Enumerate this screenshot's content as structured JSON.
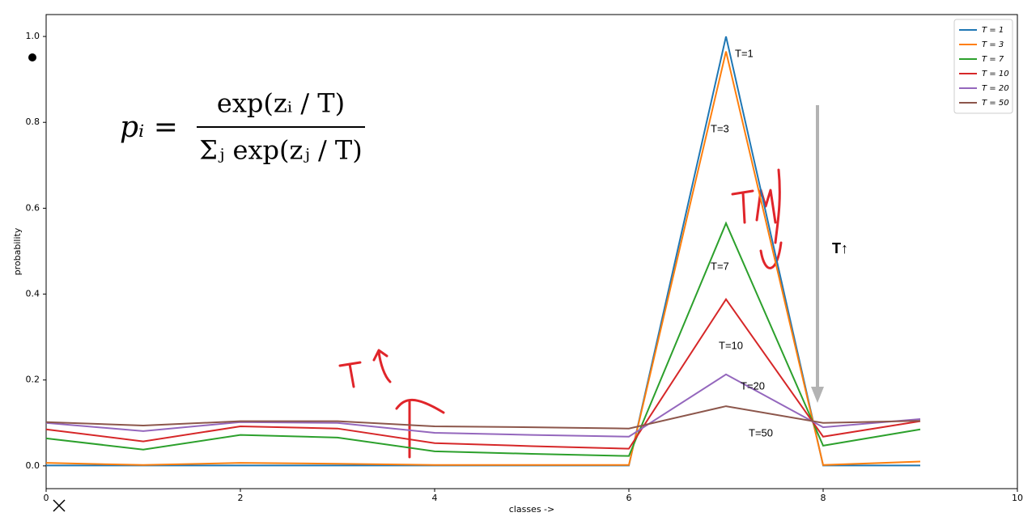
{
  "chart_data": {
    "type": "line",
    "x_label": "classes ->",
    "y_label": "probability",
    "xlim": [
      0,
      10
    ],
    "ylim": [
      -0.053,
      1.051
    ],
    "xticks": [
      0,
      2,
      4,
      6,
      8,
      10
    ],
    "yticks": [
      {
        "value": 0,
        "label": "0.0"
      },
      0.2,
      0.4,
      0.6,
      0.8,
      {
        "value": 1,
        "label": "1.0"
      }
    ],
    "x": [
      0,
      1,
      2,
      3,
      4,
      5,
      6,
      7,
      8,
      9
    ],
    "legend": "upper right",
    "series": [
      {
        "name": "T = 1",
        "color": "#1f77b4",
        "values": [
          0.001,
          0.001,
          0.001,
          0.001,
          0.001,
          0.001,
          0.001,
          1.0,
          0.001,
          0.001
        ]
      },
      {
        "name": "T = 3",
        "color": "#ff7f0e",
        "values": [
          0.007,
          0.002,
          0.007,
          0.005,
          0.002,
          0.002,
          0.002,
          0.965,
          0.002,
          0.01
        ]
      },
      {
        "name": "T = 7",
        "color": "#2ca02c",
        "values": [
          0.064,
          0.038,
          0.072,
          0.066,
          0.034,
          0.028,
          0.023,
          0.565,
          0.047,
          0.085
        ]
      },
      {
        "name": "T = 10",
        "color": "#d62728",
        "values": [
          0.085,
          0.057,
          0.092,
          0.087,
          0.053,
          0.046,
          0.04,
          0.388,
          0.068,
          0.104
        ]
      },
      {
        "name": "T = 20",
        "color": "#9467bd",
        "values": [
          0.1,
          0.081,
          0.102,
          0.1,
          0.077,
          0.072,
          0.068,
          0.213,
          0.09,
          0.109
        ]
      },
      {
        "name": "T = 50",
        "color": "#8c564b",
        "values": [
          0.102,
          0.094,
          0.104,
          0.104,
          0.092,
          0.09,
          0.087,
          0.139,
          0.1,
          0.105
        ]
      }
    ],
    "annotations": [
      {
        "text": "T=1",
        "color": "#1f5f9f"
      },
      {
        "text": "T=3",
        "color": "#e08a2c"
      },
      {
        "text": "T=7",
        "color": "#4d9a3c"
      },
      {
        "text": "T=10",
        "color": "#8b1a1a"
      },
      {
        "text": "T=20",
        "color": "#9b86c9"
      },
      {
        "text": "T=50",
        "color": "#5a3a0a"
      },
      {
        "text": "T↑",
        "color": "#333333"
      }
    ],
    "formula": {
      "lhs": "pᵢ =",
      "numerator": "exp(zᵢ / T)",
      "denominator": "Σⱼ exp(zⱼ / T)"
    }
  }
}
